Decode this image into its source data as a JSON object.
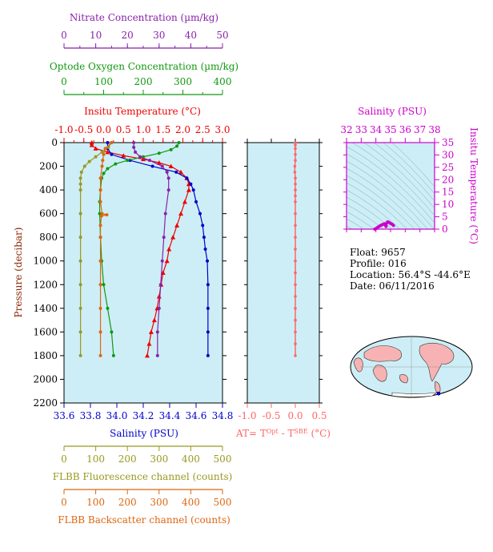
{
  "info": {
    "float": "Float:  9657",
    "profile": "Profile:  016",
    "location": "Location:  56.4°S  -44.6°E",
    "date": "Date:  06/11/2016"
  },
  "colors": {
    "panel_bg": "#cdeef6",
    "temperature": "#ee0000",
    "salinity": "#0000cc",
    "oxygen": "#119911",
    "nitrate": "#8822aa",
    "fluorescence": "#999922",
    "backscatter": "#dd6611",
    "delta_t": "#ff6666",
    "ts_axis": "#cc00cc"
  },
  "chart_data": [
    {
      "type": "line",
      "name": "profiles",
      "ylabel": "Pressure (decibar)",
      "ylim": [
        2200,
        0
      ],
      "yticks": [
        0,
        200,
        400,
        600,
        800,
        1000,
        1200,
        1400,
        1600,
        1800,
        2000,
        2200
      ],
      "axes": [
        {
          "key": "nitrate",
          "label": "Nitrate Concentration (µm/kg)",
          "lim": [
            0,
            50
          ],
          "ticks": [
            0,
            10,
            20,
            30,
            40,
            50
          ]
        },
        {
          "key": "oxygen",
          "label": "Optode Oxygen Concentration (µm/kg)",
          "lim": [
            0,
            400
          ],
          "ticks": [
            0,
            100,
            200,
            300,
            400
          ]
        },
        {
          "key": "temperature",
          "label": "Insitu Temperature (°C)",
          "lim": [
            -1.0,
            3.0
          ],
          "ticks": [
            "-1.0",
            "-0.5",
            "0.0",
            "0.5",
            "1.0",
            "1.5",
            "2.0",
            "2.5",
            "3.0"
          ]
        },
        {
          "key": "salinity",
          "label": "Salinity (PSU)",
          "lim": [
            33.6,
            34.8
          ],
          "ticks": [
            "33.6",
            "33.8",
            "34.0",
            "34.2",
            "34.4",
            "34.6",
            "34.8"
          ]
        },
        {
          "key": "fluorescence",
          "label": "FLBB Fluorescence channel (counts)",
          "lim": [
            0,
            500
          ],
          "ticks": [
            0,
            100,
            200,
            300,
            400,
            500
          ]
        },
        {
          "key": "backscatter",
          "label": "FLBB Backscatter channel (counts)",
          "lim": [
            0,
            500
          ],
          "ticks": [
            0,
            100,
            200,
            300,
            400,
            500
          ]
        }
      ],
      "series": [
        {
          "key": "temperature",
          "marker": "triangle",
          "points": [
            [
              0,
              -0.3
            ],
            [
              20,
              -0.3
            ],
            [
              50,
              -0.2
            ],
            [
              80,
              0.1
            ],
            [
              110,
              0.5
            ],
            [
              140,
              1.0
            ],
            [
              170,
              1.4
            ],
            [
              200,
              1.7
            ],
            [
              250,
              1.95
            ],
            [
              300,
              2.1
            ],
            [
              350,
              2.15
            ],
            [
              400,
              2.15
            ],
            [
              500,
              2.05
            ],
            [
              600,
              1.95
            ],
            [
              700,
              1.85
            ],
            [
              800,
              1.75
            ],
            [
              900,
              1.65
            ],
            [
              1000,
              1.6
            ],
            [
              1100,
              1.5
            ],
            [
              1200,
              1.45
            ],
            [
              1300,
              1.4
            ],
            [
              1400,
              1.35
            ],
            [
              1500,
              1.28
            ],
            [
              1600,
              1.2
            ],
            [
              1700,
              1.15
            ],
            [
              1800,
              1.1
            ]
          ]
        },
        {
          "key": "salinity",
          "marker": "circle",
          "points": [
            [
              0,
              33.93
            ],
            [
              50,
              33.93
            ],
            [
              100,
              33.96
            ],
            [
              150,
              34.1
            ],
            [
              200,
              34.27
            ],
            [
              250,
              34.45
            ],
            [
              300,
              34.53
            ],
            [
              350,
              34.56
            ],
            [
              400,
              34.58
            ],
            [
              500,
              34.6
            ],
            [
              600,
              34.63
            ],
            [
              700,
              34.65
            ],
            [
              800,
              34.66
            ],
            [
              900,
              34.67
            ],
            [
              1000,
              34.685
            ],
            [
              1200,
              34.69
            ],
            [
              1400,
              34.69
            ],
            [
              1600,
              34.69
            ],
            [
              1800,
              34.69
            ]
          ]
        },
        {
          "key": "oxygen",
          "marker": "circle",
          "points": [
            [
              0,
              290
            ],
            [
              30,
              285
            ],
            [
              60,
              270
            ],
            [
              90,
              240
            ],
            [
              120,
              200
            ],
            [
              150,
              160
            ],
            [
              180,
              130
            ],
            [
              220,
              110
            ],
            [
              260,
              100
            ],
            [
              300,
              95
            ],
            [
              400,
              92
            ],
            [
              500,
              90
            ],
            [
              600,
              90
            ],
            [
              800,
              92
            ],
            [
              1000,
              95
            ],
            [
              1200,
              100
            ],
            [
              1400,
              110
            ],
            [
              1600,
              120
            ],
            [
              1800,
              125
            ]
          ]
        },
        {
          "key": "nitrate",
          "marker": "circle",
          "points": [
            [
              0,
              22
            ],
            [
              40,
              22
            ],
            [
              80,
              22.5
            ],
            [
              120,
              24
            ],
            [
              150,
              27
            ],
            [
              200,
              31
            ],
            [
              250,
              32.5
            ],
            [
              300,
              33
            ],
            [
              400,
              33
            ],
            [
              600,
              32
            ],
            [
              800,
              31.5
            ],
            [
              1000,
              31
            ],
            [
              1200,
              30.5
            ],
            [
              1400,
              30
            ],
            [
              1600,
              29.5
            ],
            [
              1800,
              29.5
            ]
          ]
        },
        {
          "key": "fluorescence",
          "marker": "circle",
          "points": [
            [
              0,
              150
            ],
            [
              40,
              140
            ],
            [
              80,
              120
            ],
            [
              120,
              100
            ],
            [
              160,
              80
            ],
            [
              200,
              65
            ],
            [
              250,
              55
            ],
            [
              300,
              52
            ],
            [
              350,
              52
            ],
            [
              400,
              52
            ],
            [
              600,
              52
            ],
            [
              800,
              52
            ],
            [
              1000,
              52
            ],
            [
              1200,
              52
            ],
            [
              1400,
              52
            ],
            [
              1600,
              52
            ],
            [
              1800,
              52
            ]
          ]
        },
        {
          "key": "backscatter",
          "marker": "circle",
          "points": [
            [
              0,
              150
            ],
            [
              50,
              130
            ],
            [
              100,
              125
            ],
            [
              150,
              122
            ],
            [
              200,
              120
            ],
            [
              300,
              115
            ],
            [
              400,
              115
            ],
            [
              500,
              115
            ],
            [
              600,
              120
            ],
            [
              610,
              135
            ],
            [
              620,
              118
            ],
            [
              700,
              115
            ],
            [
              800,
              115
            ],
            [
              1000,
              115
            ],
            [
              1200,
              115
            ],
            [
              1400,
              115
            ],
            [
              1600,
              115
            ],
            [
              1800,
              115
            ]
          ]
        }
      ]
    },
    {
      "type": "line",
      "name": "temperature-difference",
      "xlabel": "AT= T^Opt - T^SBE (°C)",
      "xlim": [
        -1.0,
        0.5
      ],
      "xticks": [
        "-1.0",
        "-0.5",
        "0.0",
        "0.5"
      ],
      "ylim": [
        2200,
        0
      ],
      "points": [
        [
          0,
          0.0
        ],
        [
          20,
          0.0
        ],
        [
          50,
          0.0
        ],
        [
          100,
          0.0
        ],
        [
          150,
          0.0
        ],
        [
          200,
          -0.01
        ],
        [
          250,
          -0.01
        ],
        [
          300,
          0.0
        ],
        [
          350,
          0.0
        ],
        [
          400,
          0.0
        ],
        [
          450,
          0.0
        ],
        [
          500,
          0.0
        ],
        [
          600,
          0.0
        ],
        [
          700,
          0.0
        ],
        [
          800,
          0.0
        ],
        [
          900,
          0.0
        ],
        [
          1000,
          0.0
        ],
        [
          1100,
          0.0
        ],
        [
          1200,
          0.0
        ],
        [
          1300,
          0.0
        ],
        [
          1400,
          0.0
        ],
        [
          1500,
          0.0
        ],
        [
          1600,
          0.0
        ],
        [
          1700,
          0.0
        ],
        [
          1800,
          0.0
        ]
      ]
    },
    {
      "type": "scatter",
      "name": "theta-s",
      "xlabel": "Salinity (PSU)",
      "ylabel": "Insitu Temperature (°C)",
      "xlim": [
        32,
        38
      ],
      "ylim": [
        0,
        35
      ],
      "xticks": [
        32,
        33,
        34,
        35,
        36,
        37,
        38
      ],
      "yticks": [
        0,
        5,
        10,
        15,
        20,
        25,
        30,
        35
      ],
      "points": [
        [
          33.93,
          -0.3
        ],
        [
          34.0,
          0.2
        ],
        [
          34.1,
          0.6
        ],
        [
          34.2,
          1.0
        ],
        [
          34.3,
          1.4
        ],
        [
          34.4,
          1.7
        ],
        [
          34.5,
          2.0
        ],
        [
          34.58,
          2.15
        ],
        [
          34.62,
          1.95
        ],
        [
          34.65,
          1.75
        ],
        [
          34.67,
          1.6
        ],
        [
          34.69,
          1.4
        ],
        [
          34.69,
          1.1
        ],
        [
          34.75,
          2.5
        ],
        [
          34.8,
          2.9
        ],
        [
          34.9,
          2.7
        ],
        [
          35.0,
          2.3
        ],
        [
          35.1,
          2.0
        ],
        [
          35.2,
          1.5
        ]
      ]
    }
  ]
}
